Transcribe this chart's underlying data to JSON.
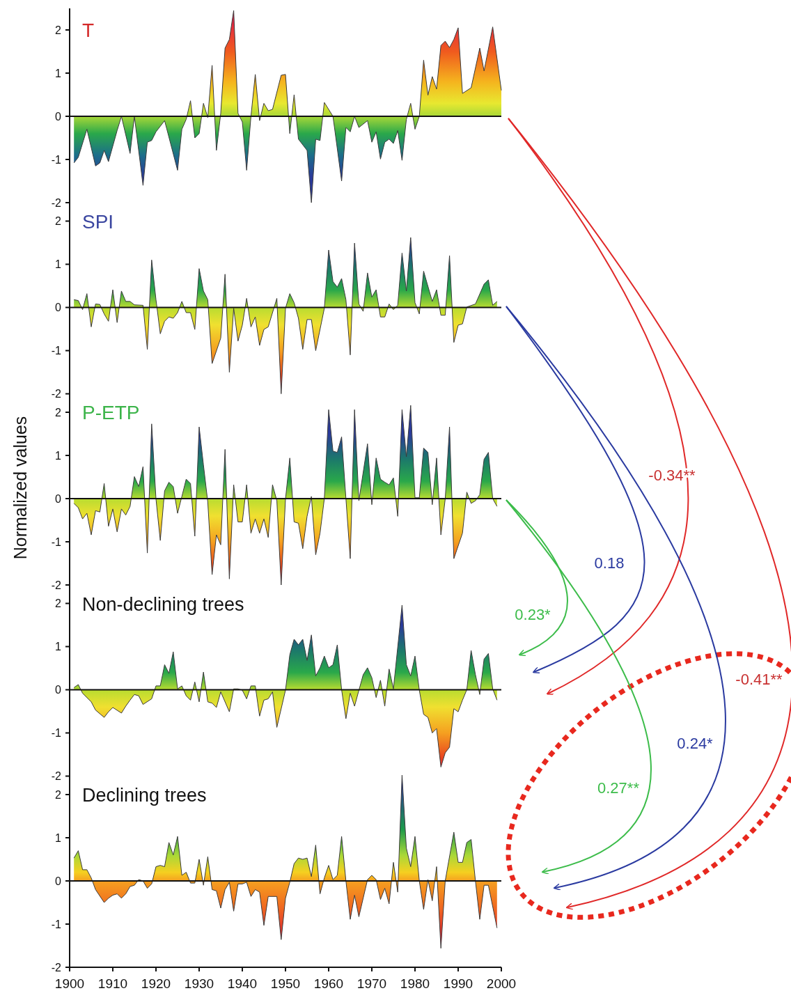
{
  "chart_data": [
    {
      "type": "area",
      "title": "T",
      "xlim": [
        1900,
        2000
      ],
      "ylim": [
        -2,
        2.5
      ],
      "yticks": [
        -2,
        -1,
        0,
        1,
        2
      ],
      "tick_labels": "y",
      "x": [
        1901,
        1902,
        1904,
        1906,
        1907,
        1908,
        1909,
        1911,
        1912,
        1914,
        1915,
        1917,
        1918,
        1919,
        1920,
        1922,
        1925,
        1926,
        1927,
        1928,
        1929,
        1930,
        1931,
        1932,
        1933,
        1934,
        1935,
        1936,
        1937,
        1938,
        1939,
        1940,
        1941,
        1942,
        1943,
        1944,
        1945,
        1946,
        1947,
        1949,
        1950,
        1951,
        1952,
        1953,
        1955,
        1956,
        1957,
        1958,
        1959,
        1961,
        1963,
        1964,
        1965,
        1966,
        1967,
        1969,
        1970,
        1971,
        1972,
        1973,
        1974,
        1975,
        1976,
        1977,
        1978,
        1979,
        1980,
        1981,
        1982,
        1983,
        1984,
        1985,
        1986,
        1987,
        1988,
        1989,
        1990,
        1991,
        1993,
        1995,
        1996,
        1998,
        2000
      ],
      "values": [
        -1.08,
        -0.95,
        -0.3,
        -1.15,
        -1.08,
        -0.79,
        -1.05,
        -0.33,
        0,
        -0.86,
        0,
        -1.6,
        -0.6,
        -0.56,
        -0.36,
        -0.1,
        -1.25,
        -0.3,
        -0.07,
        0.36,
        -0.5,
        -0.4,
        0.3,
        -0.03,
        1.18,
        -0.79,
        0.07,
        1.58,
        1.78,
        2.45,
        0.07,
        -0.13,
        -1.25,
        0,
        0.97,
        -0.1,
        0.3,
        0.13,
        0.16,
        0.95,
        0.97,
        -0.4,
        0.5,
        -0.53,
        -0.79,
        -2.0,
        -0.53,
        -0.56,
        0.32,
        0,
        -1.5,
        -0.26,
        -0.36,
        0,
        -0.26,
        -0.1,
        -0.6,
        -0.36,
        -0.99,
        -0.6,
        -0.53,
        -0.63,
        -0.33,
        -1.02,
        -0.07,
        0.3,
        -0.3,
        0,
        1.3,
        0.49,
        0.92,
        0.63,
        1.64,
        1.74,
        1.59,
        1.78,
        2.05,
        0.53,
        0.66,
        1.58,
        1.05,
        2.07,
        0.6
      ]
    },
    {
      "type": "area",
      "title": "SPI",
      "xlim": [
        1900,
        2000
      ],
      "ylim": [
        -2,
        2.5
      ],
      "yticks": [
        -2,
        -1,
        0,
        1,
        2
      ],
      "tick_labels": "y",
      "x": [
        1901,
        1902,
        1903,
        1904,
        1905,
        1906,
        1907,
        1908,
        1909,
        1910,
        1911,
        1912,
        1913,
        1914,
        1915,
        1917,
        1918,
        1919,
        1920,
        1921,
        1922,
        1923,
        1924,
        1925,
        1926,
        1927,
        1928,
        1929,
        1930,
        1931,
        1932,
        1933,
        1935,
        1936,
        1937,
        1938,
        1939,
        1940,
        1941,
        1942,
        1943,
        1944,
        1945,
        1946,
        1948,
        1949,
        1950,
        1951,
        1952,
        1953,
        1954,
        1955,
        1956,
        1957,
        1959,
        1960,
        1961,
        1962,
        1963,
        1964,
        1965,
        1966,
        1967,
        1968,
        1969,
        1970,
        1971,
        1972,
        1973,
        1974,
        1975,
        1976,
        1977,
        1978,
        1979,
        1980,
        1981,
        1982,
        1984,
        1985,
        1986,
        1987,
        1988,
        1989,
        1990,
        1991,
        1992,
        1994,
        1996,
        1997,
        1998,
        1999
      ],
      "values": [
        0.18,
        0.16,
        -0.05,
        0.32,
        -0.45,
        0.08,
        0.07,
        -0.15,
        -0.32,
        0.41,
        -0.35,
        0.38,
        0.14,
        0.14,
        0.06,
        0.05,
        -0.97,
        1.1,
        0.18,
        -0.61,
        -0.32,
        -0.22,
        -0.25,
        -0.12,
        0.14,
        -0.12,
        -0.12,
        -0.51,
        0.9,
        0.38,
        0.18,
        -1.3,
        -0.71,
        0.77,
        -1.5,
        -0.02,
        -0.78,
        -0.41,
        0.21,
        -0.45,
        -0.22,
        -0.88,
        -0.51,
        -0.45,
        0.21,
        -2.0,
        -0.02,
        0.32,
        0.11,
        -0.25,
        -0.97,
        -0.28,
        -0.28,
        -1.0,
        -0.02,
        1.33,
        0.6,
        0.47,
        0.67,
        0.18,
        -1.1,
        1.49,
        0.08,
        -0.09,
        0.8,
        0.24,
        0.41,
        -0.22,
        -0.22,
        0.08,
        -0.05,
        0.05,
        1.26,
        0.38,
        1.62,
        0.11,
        -0.15,
        0.84,
        0.14,
        0.41,
        -0.18,
        -0.18,
        1.2,
        -0.81,
        -0.41,
        -0.38,
        0.01,
        0.08,
        0.54,
        0.64,
        0.05,
        0.14
      ]
    },
    {
      "type": "area",
      "title": "P-ETP",
      "ylabel": "Normalized values",
      "xlim": [
        1900,
        2000
      ],
      "ylim": [
        -2,
        2.5
      ],
      "yticks": [
        -2,
        -1,
        0,
        1,
        2
      ],
      "tick_labels": "y",
      "x": [
        1901,
        1902,
        1903,
        1904,
        1905,
        1906,
        1907,
        1908,
        1909,
        1910,
        1911,
        1912,
        1913,
        1914,
        1915,
        1916,
        1917,
        1918,
        1919,
        1920,
        1921,
        1922,
        1923,
        1924,
        1925,
        1926,
        1927,
        1928,
        1929,
        1930,
        1931,
        1932,
        1933,
        1934,
        1935,
        1936,
        1937,
        1938,
        1939,
        1940,
        1941,
        1942,
        1943,
        1944,
        1945,
        1946,
        1947,
        1948,
        1949,
        1950,
        1951,
        1952,
        1953,
        1954,
        1955,
        1956,
        1957,
        1958,
        1959,
        1960,
        1961,
        1962,
        1963,
        1964,
        1965,
        1966,
        1967,
        1969,
        1970,
        1971,
        1972,
        1973,
        1974,
        1975,
        1976,
        1977,
        1978,
        1979,
        1980,
        1981,
        1982,
        1983,
        1984,
        1985,
        1986,
        1987,
        1988,
        1989,
        1991,
        1992,
        1993,
        1994,
        1995,
        1996,
        1997,
        1998,
        1999
      ],
      "values": [
        -0.11,
        -0.21,
        -0.47,
        -0.34,
        -0.84,
        -0.28,
        -0.31,
        0.35,
        -0.64,
        -0.24,
        -0.77,
        -0.24,
        -0.38,
        -0.18,
        0.51,
        0.28,
        0.74,
        -1.26,
        1.73,
        -0.01,
        -0.97,
        0.18,
        0.38,
        0.28,
        -0.34,
        0.05,
        0.45,
        0.35,
        -0.87,
        1.66,
        0.78,
        -0.08,
        -1.76,
        -0.84,
        -1.07,
        1.14,
        -1.86,
        0.32,
        -0.54,
        -0.54,
        0.32,
        -0.8,
        -0.47,
        -0.8,
        -0.47,
        -0.9,
        0.32,
        -0.05,
        -2.0,
        -0.01,
        0.94,
        -0.54,
        -0.57,
        -1.16,
        -0.41,
        0.05,
        -1.3,
        -0.8,
        0,
        2.06,
        1.1,
        1.07,
        1.43,
        0,
        -1.39,
        2.06,
        -0.05,
        1.27,
        -0.14,
        0.94,
        0.45,
        0.38,
        0.32,
        0.48,
        -0.41,
        2.06,
        0.97,
        2.16,
        0.02,
        0.02,
        1.17,
        1.07,
        -0.14,
        0.94,
        -0.84,
        -0.01,
        1.66,
        -1.39,
        -0.8,
        0.15,
        -0.11,
        -0.05,
        0.09,
        0.91,
        1.07,
        0,
        -0.18
      ]
    },
    {
      "type": "area",
      "title": "Non-declining trees",
      "xlim": [
        1900,
        2000
      ],
      "ylim": [
        -2,
        2.5
      ],
      "yticks": [
        -2,
        -1,
        0,
        1,
        2
      ],
      "tick_labels": "y",
      "x": [
        1901,
        1902,
        1903,
        1905,
        1906,
        1908,
        1909,
        1910,
        1912,
        1913,
        1914,
        1915,
        1916,
        1917,
        1919,
        1920,
        1921,
        1922,
        1923,
        1924,
        1925,
        1926,
        1927,
        1928,
        1929,
        1930,
        1931,
        1932,
        1933,
        1934,
        1935,
        1937,
        1938,
        1939,
        1940,
        1941,
        1942,
        1943,
        1944,
        1945,
        1946,
        1947,
        1948,
        1950,
        1951,
        1952,
        1953,
        1954,
        1955,
        1956,
        1957,
        1958,
        1959,
        1960,
        1961,
        1962,
        1963,
        1964,
        1965,
        1966,
        1968,
        1969,
        1970,
        1971,
        1972,
        1973,
        1974,
        1975,
        1977,
        1978,
        1979,
        1980,
        1981,
        1982,
        1983,
        1984,
        1985,
        1986,
        1987,
        1988,
        1989,
        1990,
        1991,
        1992,
        1993,
        1994,
        1995,
        1996,
        1997,
        1998,
        1999
      ],
      "values": [
        0.05,
        0.12,
        -0.08,
        -0.28,
        -0.47,
        -0.64,
        -0.51,
        -0.41,
        -0.54,
        -0.38,
        -0.24,
        -0.11,
        -0.14,
        -0.34,
        -0.21,
        0.09,
        0.09,
        0.58,
        0.38,
        0.88,
        0.02,
        0.09,
        -0.14,
        -0.24,
        0.18,
        -0.28,
        0.41,
        -0.28,
        -0.31,
        -0.41,
        -0.05,
        -0.51,
        0.02,
        0.02,
        -0.01,
        -0.21,
        0.09,
        0.09,
        -0.61,
        -0.24,
        -0.21,
        -0.05,
        -0.87,
        -0.01,
        0.81,
        1.17,
        1.04,
        1.17,
        0.68,
        1.27,
        0.32,
        0.51,
        0.78,
        0.51,
        0.58,
        1.04,
        0,
        -0.67,
        -0.08,
        -0.38,
        0.35,
        0.51,
        0.28,
        -0.18,
        0.22,
        -0.38,
        0.48,
        0.02,
        1.96,
        0.58,
        0.32,
        0.78,
        -0.01,
        -0.57,
        -0.64,
        -1.0,
        -0.9,
        -1.79,
        -1.46,
        -1.33,
        -0.44,
        -0.51,
        -0.24,
        0,
        0.91,
        0.35,
        -0.11,
        0.71,
        0.84,
        0.02,
        -0.24
      ]
    },
    {
      "type": "area",
      "title": "Declining trees",
      "xlim": [
        1900,
        2000
      ],
      "ylim": [
        -2,
        2.5
      ],
      "yticks": [
        -2,
        -1,
        0,
        1,
        2
      ],
      "xticks": [
        1900,
        1910,
        1920,
        1930,
        1940,
        1950,
        1960,
        1970,
        1980,
        1990,
        2000
      ],
      "x": [
        1901,
        1902,
        1903,
        1904,
        1905,
        1906,
        1908,
        1909,
        1910,
        1911,
        1912,
        1913,
        1914,
        1915,
        1916,
        1917,
        1918,
        1919,
        1920,
        1921,
        1922,
        1923,
        1924,
        1925,
        1926,
        1927,
        1928,
        1929,
        1930,
        1931,
        1932,
        1933,
        1934,
        1935,
        1936,
        1937,
        1938,
        1939,
        1940,
        1941,
        1942,
        1943,
        1944,
        1945,
        1946,
        1948,
        1949,
        1950,
        1951,
        1952,
        1953,
        1954,
        1955,
        1956,
        1957,
        1958,
        1959,
        1960,
        1961,
        1962,
        1963,
        1964,
        1965,
        1966,
        1967,
        1969,
        1970,
        1971,
        1972,
        1973,
        1974,
        1975,
        1976,
        1977,
        1978,
        1979,
        1980,
        1981,
        1982,
        1983,
        1984,
        1985,
        1986,
        1987,
        1989,
        1990,
        1991,
        1992,
        1993,
        1994,
        1995,
        1996,
        1997,
        1999
      ],
      "values": [
        0.53,
        0.7,
        0.26,
        0.26,
        0.07,
        -0.2,
        -0.5,
        -0.4,
        -0.33,
        -0.3,
        -0.4,
        -0.3,
        -0.13,
        -0.1,
        0.03,
        0,
        -0.17,
        -0.07,
        0.33,
        0.36,
        0.33,
        0.89,
        0.6,
        1.03,
        0.13,
        0.2,
        -0.05,
        -0.05,
        0.5,
        -0.1,
        0.56,
        -0.2,
        -0.23,
        -0.63,
        -0.2,
        -0.03,
        -0.7,
        -0.07,
        -0.07,
        -0.03,
        -0.36,
        -0.2,
        -0.26,
        -1.03,
        -0.36,
        -0.36,
        -1.36,
        -0.4,
        -0.03,
        0.4,
        0.53,
        0.5,
        0.53,
        0.1,
        0.83,
        -0.3,
        0.07,
        0.36,
        0.03,
        0.13,
        1.03,
        0,
        -0.89,
        -0.33,
        -0.83,
        0.03,
        0.13,
        0.03,
        -0.43,
        -0.17,
        -0.53,
        0.43,
        -0.26,
        2.45,
        0.76,
        0.33,
        1.03,
        0,
        -0.66,
        0.03,
        -0.46,
        0.33,
        -1.56,
        0,
        1.13,
        0.43,
        0.43,
        0.89,
        0.96,
        0,
        -0.89,
        -0.1,
        -0.1,
        -1.09
      ]
    },
    {
      "type": "other",
      "annotations": [
        "-0.34**",
        "0.18",
        "0.23*",
        "-0.41**",
        "0.24*",
        "0.27**"
      ]
    }
  ]
}
